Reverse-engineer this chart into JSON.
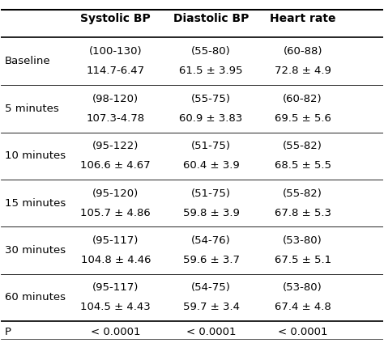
{
  "headers": [
    "",
    "Systolic BP",
    "Diastolic BP",
    "Heart rate"
  ],
  "rows": [
    {
      "label": "Baseline",
      "systolic": [
        "(100-130)",
        "114.7-6.47"
      ],
      "diastolic": [
        "(55-80)",
        "61.5 ± 3.95"
      ],
      "heart_rate": [
        "(60-88)",
        "72.8 ± 4.9"
      ]
    },
    {
      "label": "5 minutes",
      "systolic": [
        "(98-120)",
        "107.3-4.78"
      ],
      "diastolic": [
        "(55-75)",
        "60.9 ± 3.83"
      ],
      "heart_rate": [
        "(60-82)",
        "69.5 ± 5.6"
      ]
    },
    {
      "label": "10 minutes",
      "systolic": [
        "(95-122)",
        "106.6 ± 4.67"
      ],
      "diastolic": [
        "(51-75)",
        "60.4 ± 3.9"
      ],
      "heart_rate": [
        "(55-82)",
        "68.5 ± 5.5"
      ]
    },
    {
      "label": "15 minutes",
      "systolic": [
        "(95-120)",
        "105.7 ± 4.86"
      ],
      "diastolic": [
        "(51-75)",
        "59.8 ± 3.9"
      ],
      "heart_rate": [
        "(55-82)",
        "67.8 ± 5.3"
      ]
    },
    {
      "label": "30 minutes",
      "systolic": [
        "(95-117)",
        "104.8 ± 4.46"
      ],
      "diastolic": [
        "(54-76)",
        "59.6 ± 3.7"
      ],
      "heart_rate": [
        "(53-80)",
        "67.5 ± 5.1"
      ]
    },
    {
      "label": "60 minutes",
      "systolic": [
        "(95-117)",
        "104.5 ± 4.43"
      ],
      "diastolic": [
        "(54-75)",
        "59.7 ± 3.4"
      ],
      "heart_rate": [
        "(53-80)",
        "67.4 ± 4.8"
      ]
    },
    {
      "label": "P",
      "systolic": [
        "< 0.0001",
        ""
      ],
      "diastolic": [
        "< 0.0001",
        ""
      ],
      "heart_rate": [
        "< 0.0001",
        ""
      ]
    }
  ],
  "background_color": "#ffffff",
  "header_line_color": "#000000",
  "row_line_color": "#cccccc",
  "text_color": "#000000",
  "header_font_size": 10,
  "body_font_size": 9.5
}
